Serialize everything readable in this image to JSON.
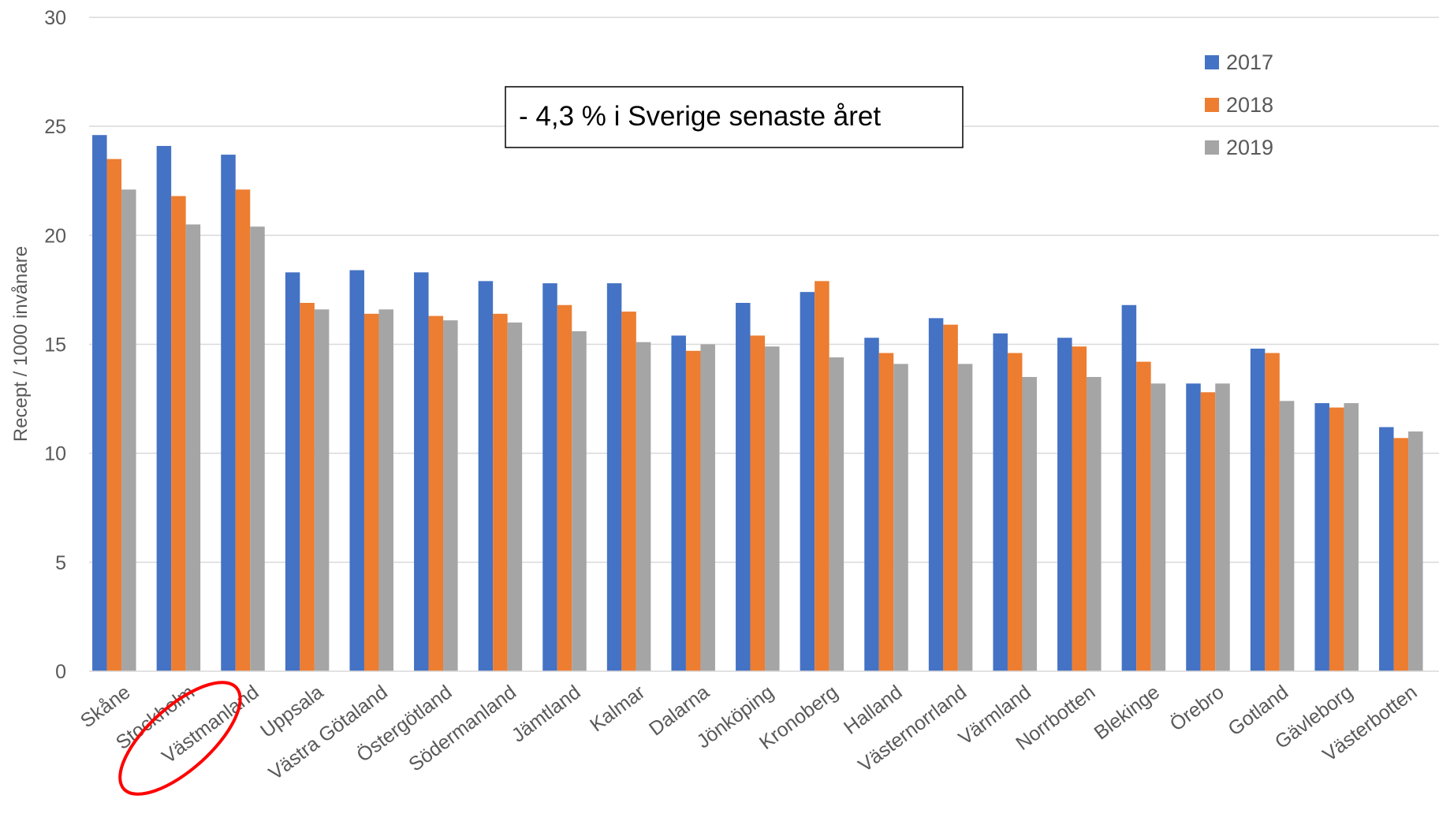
{
  "chart_data": {
    "type": "bar",
    "title": "",
    "xlabel": "",
    "ylabel": "Recept / 1000 invånare",
    "ylim": [
      0,
      30
    ],
    "yticks": [
      0,
      5,
      10,
      15,
      20,
      25,
      30
    ],
    "grid": true,
    "legend_position": "top-right",
    "annotation": "- 4,3 % i Sverige senaste året",
    "highlighted_category": "Stockholm",
    "highlight_color": "#FF0000",
    "categories": [
      "Skåne",
      "Stockholm",
      "Västmanland",
      "Uppsala",
      "Västra Götaland",
      "Östergötland",
      "Södermanland",
      "Jämtland",
      "Kalmar",
      "Dalarna",
      "Jönköping",
      "Kronoberg",
      "Halland",
      "Västernorrland",
      "Värmland",
      "Norrbotten",
      "Blekinge",
      "Örebro",
      "Gotland",
      "Gävleborg",
      "Västerbotten"
    ],
    "series": [
      {
        "name": "2017",
        "color": "#4472C4",
        "values": [
          24.6,
          24.1,
          23.7,
          18.3,
          18.4,
          18.3,
          17.9,
          17.8,
          17.8,
          15.4,
          16.9,
          17.4,
          15.3,
          16.2,
          15.5,
          15.3,
          16.8,
          13.2,
          14.8,
          12.3,
          11.2
        ]
      },
      {
        "name": "2018",
        "color": "#ED7D31",
        "values": [
          23.5,
          21.8,
          22.1,
          16.9,
          16.4,
          16.3,
          16.4,
          16.8,
          16.5,
          14.7,
          15.4,
          17.9,
          14.6,
          15.9,
          14.6,
          14.9,
          14.2,
          12.8,
          14.6,
          12.1,
          10.7
        ]
      },
      {
        "name": "2019",
        "color": "#A5A5A5",
        "values": [
          22.1,
          20.5,
          20.4,
          16.6,
          16.6,
          16.1,
          16.0,
          15.6,
          15.1,
          15.0,
          14.9,
          14.4,
          14.1,
          14.1,
          13.5,
          13.5,
          13.2,
          13.2,
          12.4,
          12.3,
          11.0
        ]
      }
    ]
  }
}
